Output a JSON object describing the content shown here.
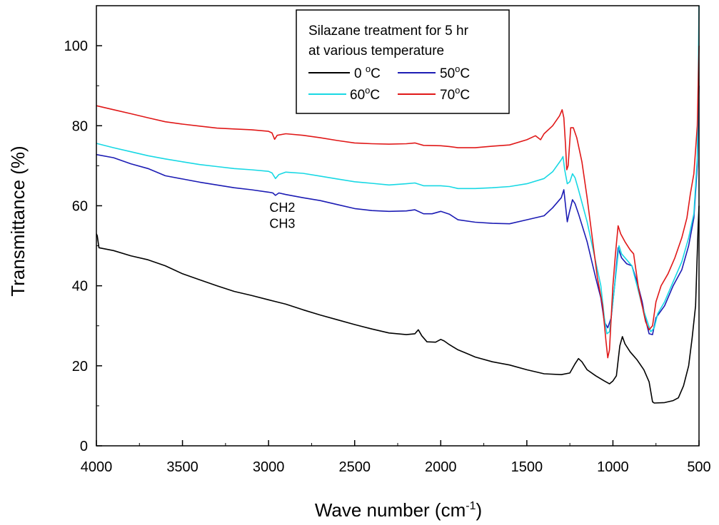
{
  "chart_data": {
    "type": "line",
    "xlabel": "Wave number (cm",
    "xlabel_sup": "-1",
    "xlabel_end": ")",
    "ylabel": "Transmittance (%)",
    "xlim": [
      4000,
      500
    ],
    "ylim": [
      0,
      110
    ],
    "x_ticks": [
      4000,
      3500,
      3000,
      2500,
      2000,
      1500,
      1000,
      500
    ],
    "y_ticks": [
      0,
      20,
      40,
      60,
      80,
      100
    ],
    "legend": {
      "title_line1": "Silazane treatment for 5 hr",
      "title_line2": "at various temperature",
      "placement": "top-right"
    },
    "annotations": [
      {
        "text": "CH2",
        "x": 2995,
        "y": 58.5
      },
      {
        "text": "CH3",
        "x": 2995,
        "y": 54.5
      }
    ],
    "series": [
      {
        "name": "0 °C",
        "label_main": "0 ",
        "label_sup": "o",
        "label_unit": "C",
        "color": "#000000",
        "points": [
          [
            4000,
            53
          ],
          [
            3995,
            52.5
          ],
          [
            3985,
            49.5
          ],
          [
            3900,
            48.8
          ],
          [
            3800,
            47.5
          ],
          [
            3700,
            46.5
          ],
          [
            3600,
            45
          ],
          [
            3500,
            43
          ],
          [
            3400,
            41.5
          ],
          [
            3300,
            40
          ],
          [
            3200,
            38.6
          ],
          [
            3100,
            37.6
          ],
          [
            3000,
            36.5
          ],
          [
            2900,
            35.4
          ],
          [
            2800,
            34
          ],
          [
            2700,
            32.7
          ],
          [
            2600,
            31.5
          ],
          [
            2500,
            30.3
          ],
          [
            2400,
            29.2
          ],
          [
            2300,
            28.2
          ],
          [
            2200,
            27.8
          ],
          [
            2150,
            28
          ],
          [
            2130,
            29
          ],
          [
            2110,
            27.5
          ],
          [
            2080,
            26
          ],
          [
            2030,
            25.9
          ],
          [
            2000,
            26.6
          ],
          [
            1980,
            26.2
          ],
          [
            1950,
            25.3
          ],
          [
            1900,
            24
          ],
          [
            1850,
            23.1
          ],
          [
            1800,
            22.2
          ],
          [
            1700,
            21
          ],
          [
            1600,
            20.2
          ],
          [
            1500,
            19
          ],
          [
            1400,
            18
          ],
          [
            1300,
            17.8
          ],
          [
            1250,
            18.2
          ],
          [
            1220,
            20.5
          ],
          [
            1200,
            21.8
          ],
          [
            1180,
            21
          ],
          [
            1150,
            19
          ],
          [
            1100,
            17.5
          ],
          [
            1050,
            16.2
          ],
          [
            1020,
            15.5
          ],
          [
            1000,
            16.2
          ],
          [
            980,
            17.5
          ],
          [
            960,
            25
          ],
          [
            945,
            27.3
          ],
          [
            930,
            25.5
          ],
          [
            900,
            23.5
          ],
          [
            860,
            21.5
          ],
          [
            820,
            19
          ],
          [
            790,
            16
          ],
          [
            770,
            11
          ],
          [
            760,
            10.7
          ],
          [
            700,
            10.8
          ],
          [
            650,
            11.3
          ],
          [
            620,
            12
          ],
          [
            590,
            15
          ],
          [
            560,
            20
          ],
          [
            540,
            27
          ],
          [
            520,
            35
          ],
          [
            505,
            55
          ],
          [
            500,
            60
          ]
        ]
      },
      {
        "name": "50 °C",
        "label_main": "50",
        "label_sup": "o",
        "label_unit": "C",
        "color": "#1c1cb4",
        "points": [
          [
            4000,
            72.8
          ],
          [
            3900,
            72
          ],
          [
            3800,
            70.5
          ],
          [
            3700,
            69.3
          ],
          [
            3600,
            67.5
          ],
          [
            3500,
            66.7
          ],
          [
            3400,
            65.9
          ],
          [
            3300,
            65.2
          ],
          [
            3200,
            64.5
          ],
          [
            3100,
            64
          ],
          [
            3000,
            63.4
          ],
          [
            2975,
            63.2
          ],
          [
            2960,
            62.6
          ],
          [
            2940,
            63.2
          ],
          [
            2900,
            62.8
          ],
          [
            2800,
            62
          ],
          [
            2700,
            61.3
          ],
          [
            2600,
            60.3
          ],
          [
            2500,
            59.3
          ],
          [
            2400,
            58.8
          ],
          [
            2300,
            58.6
          ],
          [
            2200,
            58.7
          ],
          [
            2150,
            59
          ],
          [
            2100,
            58
          ],
          [
            2050,
            58
          ],
          [
            2000,
            58.6
          ],
          [
            1950,
            57.9
          ],
          [
            1900,
            56.5
          ],
          [
            1800,
            55.9
          ],
          [
            1700,
            55.6
          ],
          [
            1600,
            55.5
          ],
          [
            1500,
            56.5
          ],
          [
            1400,
            57.5
          ],
          [
            1350,
            59.5
          ],
          [
            1300,
            62
          ],
          [
            1285,
            64
          ],
          [
            1275,
            60
          ],
          [
            1265,
            56
          ],
          [
            1255,
            58
          ],
          [
            1235,
            61.5
          ],
          [
            1220,
            60.5
          ],
          [
            1200,
            58
          ],
          [
            1150,
            51
          ],
          [
            1100,
            42
          ],
          [
            1070,
            37
          ],
          [
            1050,
            31
          ],
          [
            1030,
            29.5
          ],
          [
            1010,
            32
          ],
          [
            990,
            40
          ],
          [
            970,
            49.5
          ],
          [
            950,
            47
          ],
          [
            920,
            45.5
          ],
          [
            890,
            45
          ],
          [
            860,
            41
          ],
          [
            830,
            36
          ],
          [
            810,
            31.5
          ],
          [
            790,
            28
          ],
          [
            770,
            27.8
          ],
          [
            750,
            32
          ],
          [
            700,
            35
          ],
          [
            650,
            40
          ],
          [
            600,
            44
          ],
          [
            560,
            50
          ],
          [
            530,
            57
          ],
          [
            510,
            70
          ],
          [
            500,
            90
          ]
        ]
      },
      {
        "name": "60 °C",
        "label_main": "60",
        "label_sup": "o",
        "label_unit": "C",
        "color": "#18d8e4",
        "points": [
          [
            4000,
            75.6
          ],
          [
            3900,
            74.5
          ],
          [
            3800,
            73.5
          ],
          [
            3700,
            72.5
          ],
          [
            3600,
            71.7
          ],
          [
            3500,
            71
          ],
          [
            3400,
            70.3
          ],
          [
            3300,
            69.8
          ],
          [
            3200,
            69.3
          ],
          [
            3100,
            69
          ],
          [
            3000,
            68.6
          ],
          [
            2980,
            68.2
          ],
          [
            2960,
            66.8
          ],
          [
            2940,
            67.8
          ],
          [
            2900,
            68.4
          ],
          [
            2800,
            68.1
          ],
          [
            2700,
            67.4
          ],
          [
            2600,
            66.7
          ],
          [
            2500,
            66
          ],
          [
            2400,
            65.6
          ],
          [
            2300,
            65.2
          ],
          [
            2200,
            65.5
          ],
          [
            2150,
            65.7
          ],
          [
            2100,
            65
          ],
          [
            2000,
            65
          ],
          [
            1950,
            64.8
          ],
          [
            1900,
            64.3
          ],
          [
            1800,
            64.3
          ],
          [
            1700,
            64.5
          ],
          [
            1600,
            64.8
          ],
          [
            1500,
            65.5
          ],
          [
            1400,
            66.8
          ],
          [
            1350,
            68.5
          ],
          [
            1300,
            71.5
          ],
          [
            1290,
            72.3
          ],
          [
            1280,
            69
          ],
          [
            1265,
            65.5
          ],
          [
            1250,
            66
          ],
          [
            1235,
            68
          ],
          [
            1220,
            67
          ],
          [
            1200,
            64
          ],
          [
            1150,
            56
          ],
          [
            1100,
            46
          ],
          [
            1070,
            40
          ],
          [
            1050,
            32
          ],
          [
            1035,
            28
          ],
          [
            1020,
            28.5
          ],
          [
            1000,
            36
          ],
          [
            980,
            44
          ],
          [
            965,
            50
          ],
          [
            950,
            48
          ],
          [
            920,
            46.5
          ],
          [
            890,
            45
          ],
          [
            860,
            40
          ],
          [
            830,
            35
          ],
          [
            800,
            31
          ],
          [
            780,
            28.5
          ],
          [
            760,
            29.5
          ],
          [
            740,
            33
          ],
          [
            700,
            36
          ],
          [
            650,
            41
          ],
          [
            600,
            46
          ],
          [
            560,
            52
          ],
          [
            530,
            58
          ],
          [
            510,
            72
          ],
          [
            500,
            110
          ]
        ]
      },
      {
        "name": "70 °C",
        "label_main": "70",
        "label_sup": "o",
        "label_unit": "C",
        "color": "#e01818",
        "points": [
          [
            4000,
            85
          ],
          [
            3900,
            84
          ],
          [
            3800,
            83
          ],
          [
            3700,
            82
          ],
          [
            3600,
            81
          ],
          [
            3500,
            80.4
          ],
          [
            3400,
            79.9
          ],
          [
            3300,
            79.4
          ],
          [
            3200,
            79.2
          ],
          [
            3100,
            79
          ],
          [
            3000,
            78.6
          ],
          [
            2980,
            78.2
          ],
          [
            2965,
            76.6
          ],
          [
            2950,
            77.6
          ],
          [
            2900,
            78
          ],
          [
            2800,
            77.6
          ],
          [
            2700,
            77
          ],
          [
            2600,
            76.3
          ],
          [
            2500,
            75.7
          ],
          [
            2400,
            75.5
          ],
          [
            2300,
            75.4
          ],
          [
            2200,
            75.5
          ],
          [
            2150,
            75.7
          ],
          [
            2100,
            75.1
          ],
          [
            2000,
            75
          ],
          [
            1950,
            74.8
          ],
          [
            1900,
            74.5
          ],
          [
            1800,
            74.5
          ],
          [
            1700,
            74.9
          ],
          [
            1600,
            75.2
          ],
          [
            1500,
            76.5
          ],
          [
            1450,
            77.5
          ],
          [
            1420,
            76.5
          ],
          [
            1400,
            78
          ],
          [
            1350,
            80
          ],
          [
            1310,
            82.5
          ],
          [
            1295,
            84
          ],
          [
            1285,
            82
          ],
          [
            1275,
            75
          ],
          [
            1268,
            69
          ],
          [
            1260,
            70
          ],
          [
            1245,
            79.5
          ],
          [
            1230,
            79.5
          ],
          [
            1210,
            77
          ],
          [
            1180,
            71
          ],
          [
            1150,
            62
          ],
          [
            1120,
            52
          ],
          [
            1090,
            42
          ],
          [
            1060,
            35
          ],
          [
            1040,
            26
          ],
          [
            1030,
            22
          ],
          [
            1020,
            24
          ],
          [
            1000,
            40
          ],
          [
            985,
            48
          ],
          [
            970,
            55
          ],
          [
            955,
            53
          ],
          [
            930,
            51
          ],
          [
            900,
            49
          ],
          [
            880,
            48
          ],
          [
            870,
            45
          ],
          [
            850,
            39
          ],
          [
            830,
            35
          ],
          [
            810,
            31
          ],
          [
            790,
            29
          ],
          [
            770,
            30
          ],
          [
            750,
            36
          ],
          [
            720,
            40
          ],
          [
            680,
            43
          ],
          [
            640,
            47
          ],
          [
            600,
            52
          ],
          [
            570,
            57
          ],
          [
            550,
            63
          ],
          [
            530,
            68
          ],
          [
            510,
            80
          ],
          [
            500,
            100
          ]
        ]
      }
    ]
  }
}
